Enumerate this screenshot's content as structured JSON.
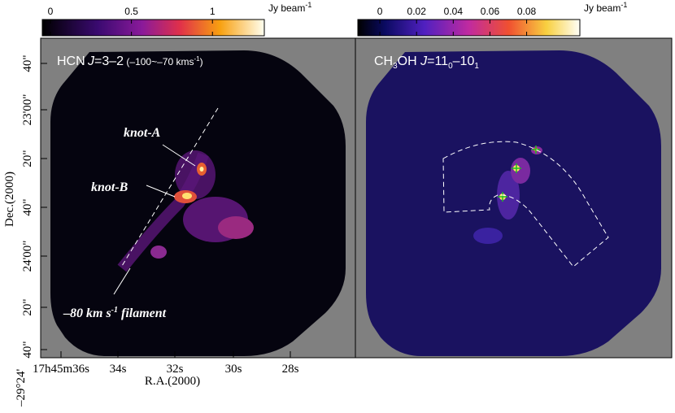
{
  "left_panel": {
    "colorbar": {
      "range": [
        -0.05,
        1.32
      ],
      "ticks": [
        0,
        0.5,
        1
      ],
      "unit": "Jy beam",
      "unit_exp": "-1"
    },
    "title": {
      "molecule": "HCN",
      "j": "J",
      "transition": "=3–2",
      "velocity": "(–100~–70 kms",
      "velocity_exp": "-1",
      "velocity_close": ")"
    },
    "annotations": {
      "knot_a": "knot-A",
      "knot_b": "knot-B",
      "filament": "–80 km s",
      "filament_exp": "-1",
      "filament_end": " filament"
    },
    "x_axis": {
      "label": "R.A.(2000)",
      "ticks": [
        "17h45m36s",
        "34s",
        "32s",
        "30s",
        "28s"
      ]
    },
    "y_axis": {
      "label": "Dec.(2000)",
      "ticks": [
        "40\"",
        "23'00\"",
        "20\"",
        "40\"",
        "24'00\"",
        "20\"",
        "40\""
      ],
      "origin": "–29°24'"
    }
  },
  "right_panel": {
    "colorbar": {
      "range": [
        -0.012,
        0.109
      ],
      "ticks": [
        0,
        0.02,
        0.04,
        0.06,
        0.08
      ],
      "unit": "Jy beam",
      "unit_exp": "-1"
    },
    "title": {
      "p1": "CH",
      "s1": "3",
      "p2": "OH ",
      "j": "J",
      "p3": "=11",
      "s2": "0",
      "p4": "–10",
      "s3": "1"
    }
  }
}
